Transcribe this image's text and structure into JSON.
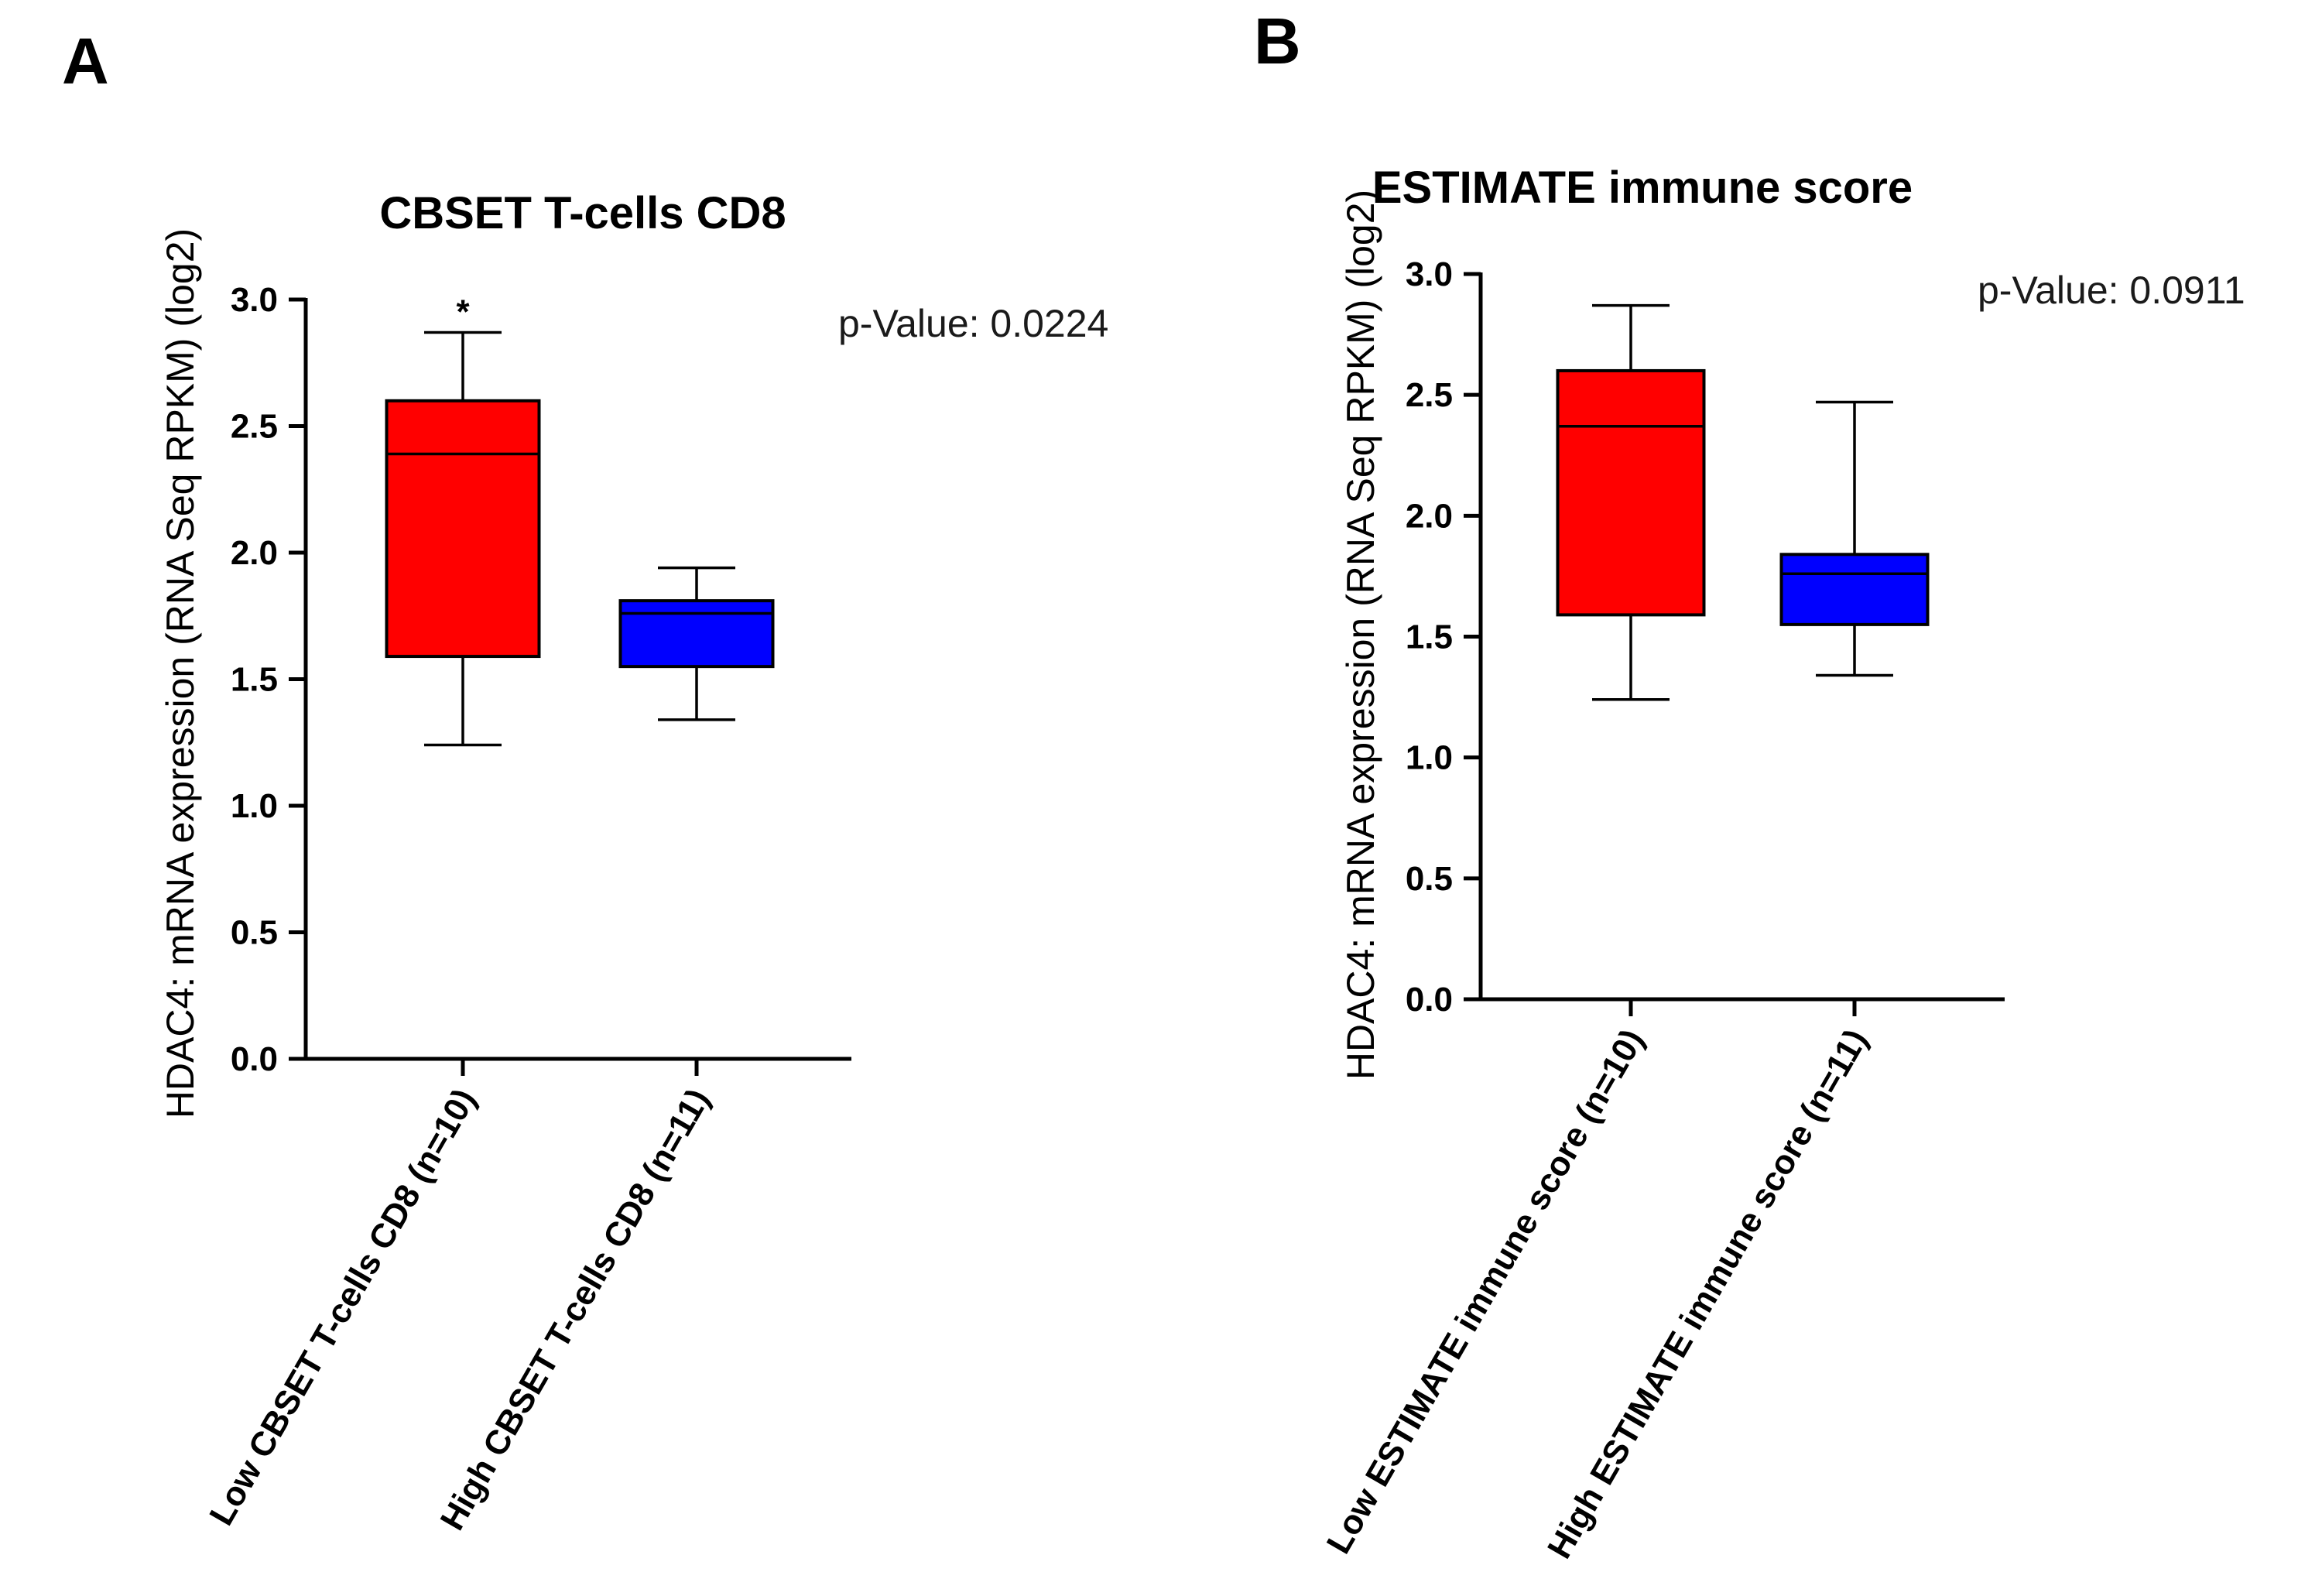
{
  "chart_data": [
    {
      "type": "box",
      "panel": "A",
      "title": "CBSET T-cells CD8",
      "ylabel": "HDAC4: mRNA expression (RNA Seq RPKM) (log2)",
      "xlabel": "",
      "ylim": [
        0,
        3.0
      ],
      "yticks": [
        "0.0",
        "0.5",
        "1.0",
        "1.5",
        "2.0",
        "2.5",
        "3.0"
      ],
      "annotation": "p-Value: 0.0224",
      "categories": [
        "Low CBSET T-cells CD8 (n=10)",
        "High CBSET T-cells CD8 (n=11)"
      ],
      "boxes": [
        {
          "min": 1.24,
          "q1": 1.59,
          "median": 2.39,
          "q3": 2.6,
          "max": 2.87,
          "color": "#ff0000",
          "marker": "*"
        },
        {
          "min": 1.34,
          "q1": 1.55,
          "median": 1.76,
          "q3": 1.81,
          "max": 1.94,
          "color": "#0000ff",
          "marker": ""
        }
      ]
    },
    {
      "type": "box",
      "panel": "B",
      "title": "ESTIMATE immune score",
      "ylabel": "HDAC4: mRNA expression (RNA Seq RPKM) (log2)",
      "xlabel": "",
      "ylim": [
        0,
        3.0
      ],
      "yticks": [
        "0.0",
        "0.5",
        "1.0",
        "1.5",
        "2.0",
        "2.5",
        "3.0"
      ],
      "annotation": "p-Value: 0.0911",
      "categories": [
        "Low ESTIMATE immune score (n=10)",
        "High ESTIMATE immune score (n=11)"
      ],
      "boxes": [
        {
          "min": 1.24,
          "q1": 1.59,
          "median": 2.37,
          "q3": 2.6,
          "max": 2.87,
          "color": "#ff0000",
          "marker": ""
        },
        {
          "min": 1.34,
          "q1": 1.55,
          "median": 1.76,
          "q3": 1.84,
          "max": 2.47,
          "color": "#0000ff",
          "marker": ""
        }
      ]
    }
  ]
}
